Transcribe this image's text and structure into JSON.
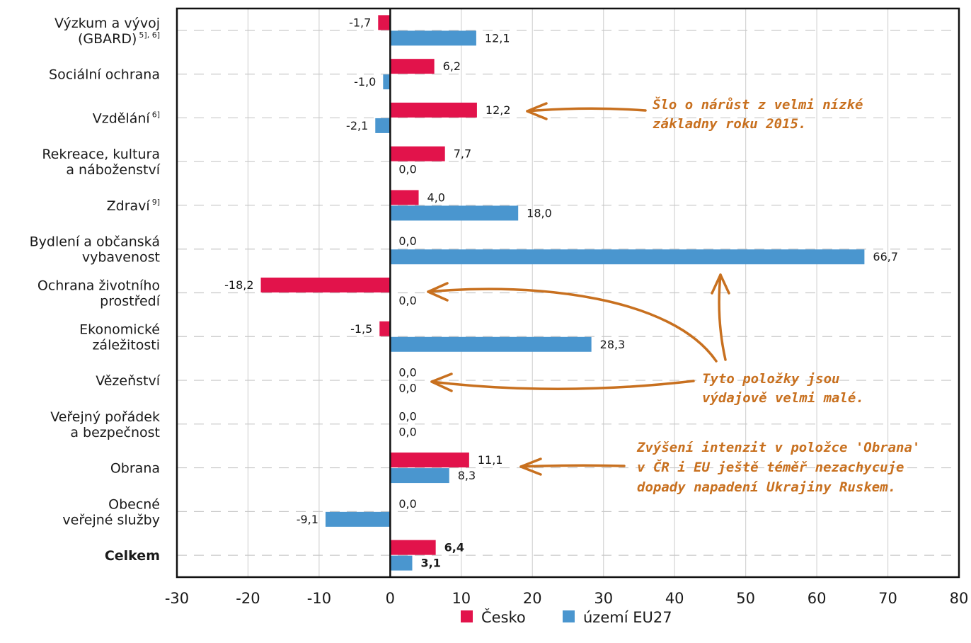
{
  "chart_data": {
    "type": "bar",
    "orientation": "horizontal",
    "categories": [
      {
        "lines": [
          "Výzkum a vývoj",
          "(GBARD)"
        ],
        "sup": "5], 6]",
        "bold": false
      },
      {
        "lines": [
          "Sociální ochrana"
        ],
        "sup": "",
        "bold": false
      },
      {
        "lines": [
          "Vzdělání"
        ],
        "sup": "6]",
        "bold": false
      },
      {
        "lines": [
          "Rekreace, kultura",
          "a náboženství"
        ],
        "sup": "",
        "bold": false
      },
      {
        "lines": [
          "Zdraví"
        ],
        "sup": "9]",
        "bold": false
      },
      {
        "lines": [
          "Bydlení a občanská",
          "vybavenost"
        ],
        "sup": "",
        "bold": false
      },
      {
        "lines": [
          "Ochrana životního",
          "prostředí"
        ],
        "sup": "",
        "bold": false
      },
      {
        "lines": [
          "Ekonomické",
          "záležitosti"
        ],
        "sup": "",
        "bold": false
      },
      {
        "lines": [
          "Vězeňství"
        ],
        "sup": "",
        "bold": false
      },
      {
        "lines": [
          "Veřejný pořádek",
          "a bezpečnost"
        ],
        "sup": "",
        "bold": false
      },
      {
        "lines": [
          "Obrana"
        ],
        "sup": "",
        "bold": false
      },
      {
        "lines": [
          "Obecné",
          "veřejné služby"
        ],
        "sup": "",
        "bold": false
      },
      {
        "lines": [
          "Celkem"
        ],
        "sup": "",
        "bold": true
      }
    ],
    "series": [
      {
        "name": "Česko",
        "color": "#e2134b",
        "values": [
          -1.7,
          6.2,
          12.2,
          7.7,
          4.0,
          0.0,
          -18.2,
          -1.5,
          0.0,
          0.0,
          11.1,
          0.0,
          6.4
        ],
        "labels": [
          "-1,7",
          "6,2",
          "12,2",
          "7,7",
          "4,0",
          "0,0",
          "-18,2",
          "-1,5",
          "0,0",
          "0,0",
          "11,1",
          "0,0",
          "6,4"
        ]
      },
      {
        "name": "území EU27",
        "color": "#4a96cf",
        "values": [
          12.1,
          -1.0,
          -2.1,
          0.0,
          18.0,
          66.7,
          0.0,
          28.3,
          0.0,
          0.0,
          8.3,
          -9.1,
          3.1
        ],
        "labels": [
          "12,1",
          "-1,0",
          "-2,1",
          "0,0",
          "18,0",
          "66,7",
          "0,0",
          "28,3",
          "0,0",
          "0,0",
          "8,3",
          "-9,1",
          "3,1"
        ]
      }
    ],
    "xlim": [
      -30,
      80
    ],
    "xticks": [
      -30,
      -20,
      -10,
      0,
      10,
      20,
      30,
      40,
      50,
      60,
      70,
      80
    ],
    "xtick_labels": [
      "-30",
      "-20",
      "-10",
      "0",
      "10",
      "20",
      "30",
      "40",
      "50",
      "60",
      "70",
      "80"
    ],
    "grid": "vertical lines + dashed category lines",
    "legend": "bottom-center",
    "annotations": [
      {
        "id": "annot-vzdelani",
        "lines": [
          "Šlo o nárůst z velmi nízké",
          "základny roku 2015."
        ]
      },
      {
        "id": "annot-male",
        "lines": [
          "Tyto položky jsou",
          "výdajově velmi malé."
        ]
      },
      {
        "id": "annot-obrana",
        "lines": [
          "Zvýšení intenzit v položce 'Obrana'",
          "v ČR i EU ještě téměř nezachycuje",
          "dopady napadení Ukrajiny Ruskem."
        ]
      }
    ],
    "annotation_color": "#c8701f"
  }
}
